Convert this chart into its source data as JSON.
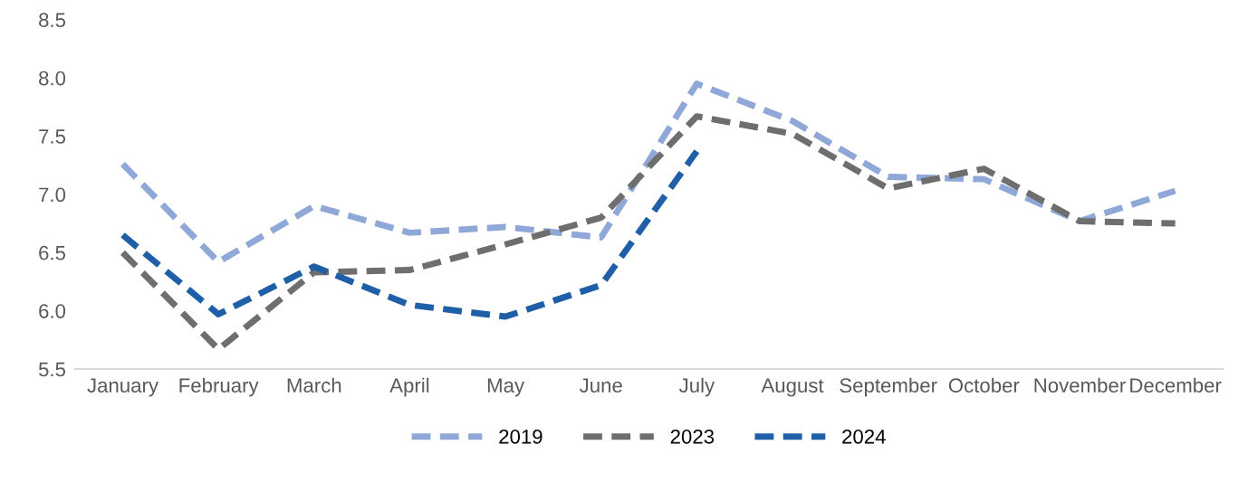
{
  "chart_data": {
    "type": "line",
    "categories": [
      "January",
      "February",
      "March",
      "April",
      "May",
      "June",
      "July",
      "August",
      "September",
      "October",
      "November",
      "December"
    ],
    "series": [
      {
        "name": "2019",
        "color": "#8fa8d8",
        "values": [
          7.26,
          6.42,
          6.9,
          6.67,
          6.72,
          6.63,
          7.95,
          7.63,
          7.15,
          7.13,
          6.77,
          7.03
        ]
      },
      {
        "name": "2023",
        "color": "#6e6e6e",
        "values": [
          6.5,
          5.67,
          6.33,
          6.35,
          6.57,
          6.8,
          7.67,
          7.52,
          7.05,
          7.22,
          6.77,
          6.75
        ]
      },
      {
        "name": "2024",
        "color": "#1f5fa8",
        "values": [
          6.65,
          5.97,
          6.38,
          6.05,
          5.95,
          6.22,
          7.37,
          null,
          null,
          null,
          null,
          null
        ]
      }
    ],
    "ylim": [
      5.5,
      8.5
    ],
    "yticks": [
      5.5,
      {
        "value": 6,
        "label": "6.0"
      },
      6.5,
      {
        "value": 7,
        "label": "7.0"
      },
      7.5,
      {
        "value": 8,
        "label": "8.0"
      },
      8.5
    ],
    "grid": false,
    "legend": "bottom",
    "line_style": "dashed",
    "marker": "none"
  }
}
